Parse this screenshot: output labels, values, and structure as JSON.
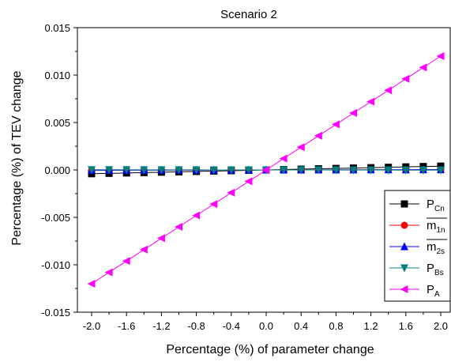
{
  "chart_data": {
    "type": "line",
    "title": "Scenario 2",
    "xlabel": "Percentage (%) of parameter change",
    "ylabel": "Percentage (%) of TEV change",
    "xlim": [
      -2.2,
      2.2
    ],
    "ylim": [
      -0.015,
      0.015
    ],
    "xticks": [
      -2.0,
      -1.6,
      -1.2,
      -0.8,
      -0.4,
      0.0,
      0.4,
      0.8,
      1.2,
      1.6,
      2.0
    ],
    "xtick_labels": [
      "-2.0",
      "-1.6",
      "-1.2",
      "-0.8",
      "-0.4",
      "0.0",
      "0.4",
      "0.8",
      "1.2",
      "1.6",
      "2.0"
    ],
    "yticks": [
      -0.015,
      -0.01,
      -0.005,
      0.0,
      0.005,
      0.01,
      0.015
    ],
    "ytick_labels": [
      "-0.015",
      "-0.010",
      "-0.005",
      "0.000",
      "0.005",
      "0.010",
      "0.015"
    ],
    "grid": false,
    "legend_position": "right-lower",
    "x": [
      -2.0,
      -1.8,
      -1.6,
      -1.4,
      -1.2,
      -1.0,
      -0.8,
      -0.6,
      -0.4,
      -0.2,
      0.0,
      0.2,
      0.4,
      0.6,
      0.8,
      1.0,
      1.2,
      1.4,
      1.6,
      1.8,
      2.0
    ],
    "series": [
      {
        "name": "P",
        "subscript": "Cn",
        "overline": false,
        "marker": "square",
        "color": "#000000",
        "values": [
          -0.0004,
          -0.00036,
          -0.00032,
          -0.00028,
          -0.00024,
          -0.0002,
          -0.00016,
          -0.00012,
          -8e-05,
          -4e-05,
          0.0,
          4e-05,
          8e-05,
          0.00012,
          0.00016,
          0.0002,
          0.00024,
          0.00028,
          0.00032,
          0.00036,
          0.0004
        ]
      },
      {
        "name": "m",
        "subscript": "1n",
        "overline": true,
        "marker": "circle",
        "color": "#ff0000",
        "values": [
          -2e-05,
          -2e-05,
          -2e-05,
          -1e-05,
          -1e-05,
          -1e-05,
          -1e-05,
          0.0,
          0.0,
          0.0,
          0.0,
          0.0,
          0.0,
          0.0,
          1e-05,
          1e-05,
          1e-05,
          1e-05,
          2e-05,
          2e-05,
          2e-05
        ]
      },
      {
        "name": "m",
        "subscript": "2s",
        "overline": true,
        "marker": "triangle-up",
        "color": "#0000ff",
        "values": [
          -3e-05,
          -3e-05,
          -2e-05,
          -2e-05,
          -2e-05,
          -1e-05,
          -1e-05,
          -1e-05,
          0.0,
          0.0,
          0.0,
          0.0,
          0.0,
          1e-05,
          1e-05,
          1e-05,
          2e-05,
          2e-05,
          2e-05,
          3e-05,
          3e-05
        ]
      },
      {
        "name": "P",
        "subscript": "Bs",
        "overline": false,
        "marker": "triangle-down",
        "color": "#008080",
        "values": [
          2e-05,
          2e-05,
          2e-05,
          1e-05,
          1e-05,
          1e-05,
          1e-05,
          0.0,
          0.0,
          0.0,
          0.0,
          0.0,
          0.0,
          0.0,
          -1e-05,
          -1e-05,
          -1e-05,
          -1e-05,
          -2e-05,
          -2e-05,
          -2e-05
        ]
      },
      {
        "name": "P",
        "subscript": "A",
        "overline": false,
        "marker": "triangle-left",
        "color": "#ff00ff",
        "values": [
          -0.012,
          -0.0108,
          -0.0096,
          -0.0084,
          -0.0072,
          -0.006,
          -0.0048,
          -0.0036,
          -0.0024,
          -0.0012,
          0.0,
          0.0012,
          0.0024,
          0.0036,
          0.0048,
          0.006,
          0.0072,
          0.0084,
          0.0096,
          0.0108,
          0.012
        ]
      }
    ]
  }
}
